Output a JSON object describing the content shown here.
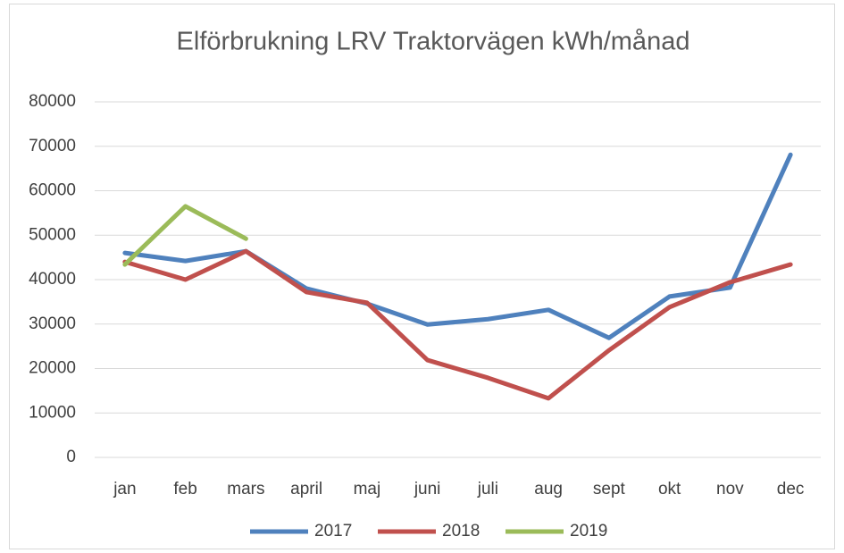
{
  "chart_data": {
    "type": "line",
    "title": "Elförbrukning LRV Traktorvägen kWh/månad",
    "categories": [
      "jan",
      "feb",
      "mars",
      "april",
      "maj",
      "juni",
      "juli",
      "aug",
      "sept",
      "okt",
      "nov",
      "dec"
    ],
    "series": [
      {
        "name": "2017",
        "color": "#4f81bd",
        "values": [
          46000,
          44200,
          46400,
          38000,
          34600,
          29900,
          31100,
          33200,
          26900,
          36200,
          38200,
          68100
        ]
      },
      {
        "name": "2018",
        "color": "#c0504d",
        "values": [
          44000,
          40000,
          46400,
          37200,
          34800,
          21900,
          17900,
          13300,
          24100,
          33800,
          39400,
          43400
        ]
      },
      {
        "name": "2019",
        "color": "#9bbb59",
        "values": [
          43400,
          56500,
          49200,
          null,
          null,
          null,
          null,
          null,
          null,
          null,
          null,
          null
        ]
      }
    ],
    "ylim": [
      0,
      80000
    ],
    "yticks": [
      0,
      10000,
      20000,
      30000,
      40000,
      50000,
      60000,
      70000,
      80000
    ],
    "grid": true,
    "legend": "bottom"
  }
}
